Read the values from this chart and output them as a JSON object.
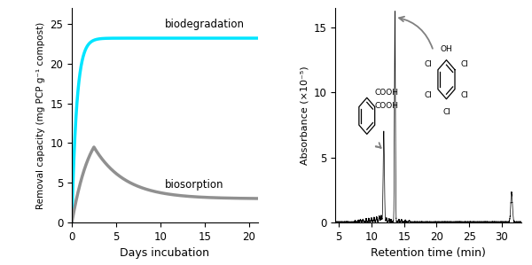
{
  "left": {
    "biodeg_color": "#00e5ff",
    "biosorb_color": "#909090",
    "biodeg_label": "biodegradation",
    "biosorb_label": "biosorption",
    "xlabel": "Days incubation",
    "ylabel": "Removal capacity (mg PCP g⁻¹ compost)",
    "xlim": [
      0,
      21
    ],
    "ylim": [
      0,
      27
    ],
    "xticks": [
      0,
      5,
      10,
      15,
      20
    ],
    "yticks": [
      0,
      5,
      10,
      15,
      20,
      25
    ]
  },
  "right": {
    "xlabel": "Retention time (min)",
    "ylabel": "Absorbance (×10⁻⁵)",
    "xlim": [
      4.5,
      33
    ],
    "ylim": [
      0,
      16.5
    ],
    "xticks": [
      5,
      10,
      15,
      20,
      25,
      30
    ],
    "yticks": [
      0,
      5,
      10,
      15
    ]
  }
}
